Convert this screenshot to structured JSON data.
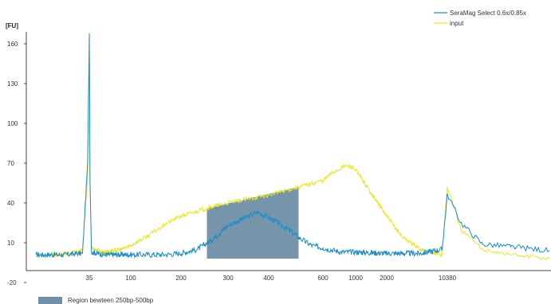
{
  "chart_data": {
    "type": "line",
    "title": "",
    "ylabel": "[FU]",
    "xlabel": "",
    "y_ticks": [
      "160",
      "130",
      "100",
      "70",
      "40",
      "10",
      "-20"
    ],
    "y_tick_values": [
      160,
      130,
      100,
      70,
      40,
      10,
      -20
    ],
    "ylim": [
      -20,
      170
    ],
    "x_ticks": [
      "35",
      "100",
      "200",
      "300",
      "400",
      "600",
      "1000",
      "2000",
      "10380"
    ],
    "x_scale": "Bioanalyzer sizing ladder (non-linear, bp)",
    "xlim": [
      22,
      14000
    ],
    "legend_position": "top-right",
    "series": [
      {
        "name": "SeraMag Select 0.6x/0.85x",
        "color": "#1a8cc8",
        "points": [
          {
            "x": 22,
            "y": 1
          },
          {
            "x": 28,
            "y": 1
          },
          {
            "x": 33,
            "y": 2
          },
          {
            "x": 34.5,
            "y": 70
          },
          {
            "x": 35,
            "y": 168
          },
          {
            "x": 35.6,
            "y": 60
          },
          {
            "x": 37,
            "y": 3
          },
          {
            "x": 50,
            "y": 1
          },
          {
            "x": 80,
            "y": 1
          },
          {
            "x": 120,
            "y": 1
          },
          {
            "x": 160,
            "y": 1
          },
          {
            "x": 200,
            "y": 2
          },
          {
            "x": 230,
            "y": 5
          },
          {
            "x": 260,
            "y": 12
          },
          {
            "x": 300,
            "y": 23
          },
          {
            "x": 340,
            "y": 29
          },
          {
            "x": 370,
            "y": 33
          },
          {
            "x": 400,
            "y": 29
          },
          {
            "x": 450,
            "y": 22
          },
          {
            "x": 500,
            "y": 14
          },
          {
            "x": 550,
            "y": 8
          },
          {
            "x": 600,
            "y": 6
          },
          {
            "x": 800,
            "y": 3
          },
          {
            "x": 1000,
            "y": 3
          },
          {
            "x": 2000,
            "y": 2
          },
          {
            "x": 5000,
            "y": 2
          },
          {
            "x": 9000,
            "y": 5
          },
          {
            "x": 10000,
            "y": 35
          },
          {
            "x": 10380,
            "y": 47
          },
          {
            "x": 10800,
            "y": 25
          },
          {
            "x": 11500,
            "y": 9
          },
          {
            "x": 12500,
            "y": 7
          },
          {
            "x": 14000,
            "y": 4
          }
        ]
      },
      {
        "name": "input",
        "color": "#e8e82a",
        "points": [
          {
            "x": 22,
            "y": 1
          },
          {
            "x": 28,
            "y": 1
          },
          {
            "x": 33,
            "y": 4
          },
          {
            "x": 34.5,
            "y": 60
          },
          {
            "x": 35,
            "y": 165
          },
          {
            "x": 35.6,
            "y": 55
          },
          {
            "x": 37,
            "y": 6
          },
          {
            "x": 50,
            "y": 3
          },
          {
            "x": 80,
            "y": 5
          },
          {
            "x": 100,
            "y": 8
          },
          {
            "x": 130,
            "y": 16
          },
          {
            "x": 160,
            "y": 24
          },
          {
            "x": 200,
            "y": 30
          },
          {
            "x": 260,
            "y": 37
          },
          {
            "x": 300,
            "y": 40
          },
          {
            "x": 400,
            "y": 46
          },
          {
            "x": 500,
            "y": 52
          },
          {
            "x": 600,
            "y": 57
          },
          {
            "x": 700,
            "y": 63
          },
          {
            "x": 850,
            "y": 68
          },
          {
            "x": 950,
            "y": 67
          },
          {
            "x": 1100,
            "y": 60
          },
          {
            "x": 1400,
            "y": 48
          },
          {
            "x": 2000,
            "y": 30
          },
          {
            "x": 3000,
            "y": 15
          },
          {
            "x": 5000,
            "y": 5
          },
          {
            "x": 9000,
            "y": 1
          },
          {
            "x": 10000,
            "y": 40
          },
          {
            "x": 10380,
            "y": 52
          },
          {
            "x": 10800,
            "y": 20
          },
          {
            "x": 11500,
            "y": 5
          },
          {
            "x": 12500,
            "y": 1
          },
          {
            "x": 14000,
            "y": -2
          }
        ]
      }
    ],
    "region": {
      "label": "Region bewteen 250bp-500bp",
      "x_start": 250,
      "x_end": 500,
      "color": "#6f8fa6"
    }
  }
}
